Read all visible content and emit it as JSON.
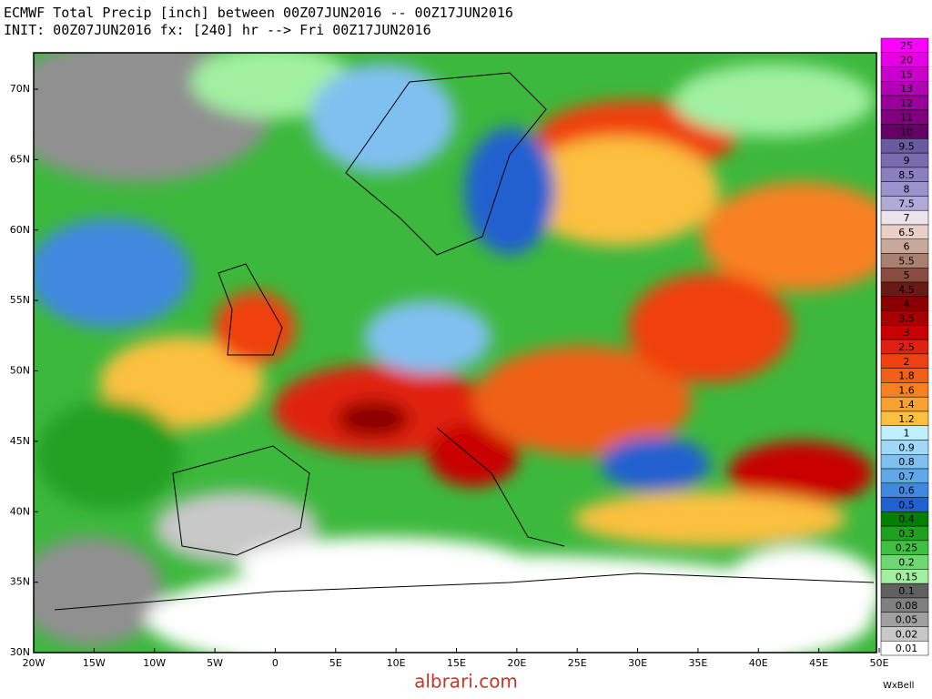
{
  "header": {
    "line1": "ECMWF Total Precip [inch] between 00Z07JUN2016 -- 00Z17JUN2016",
    "line2": "INIT: 00Z07JUN2016 fx: [240] hr --> Fri 00Z17JUN2016"
  },
  "lat_labels": [
    "70N",
    "65N",
    "60N",
    "55N",
    "50N",
    "45N",
    "40N",
    "35N",
    "30N"
  ],
  "lon_labels": [
    "20W",
    "15W",
    "10W",
    "5W",
    "0",
    "5E",
    "10E",
    "15E",
    "20E",
    "25E",
    "30E",
    "35E",
    "40E",
    "45E",
    "50E"
  ],
  "colorbar": [
    {
      "label": "25",
      "color": "#ff00ff"
    },
    {
      "label": "20",
      "color": "#e600e6"
    },
    {
      "label": "15",
      "color": "#cc00cc"
    },
    {
      "label": "13",
      "color": "#b300b3"
    },
    {
      "label": "12",
      "color": "#990099"
    },
    {
      "label": "11",
      "color": "#800080"
    },
    {
      "label": "10",
      "color": "#660066"
    },
    {
      "label": "9.5",
      "color": "#6a5a9e"
    },
    {
      "label": "9",
      "color": "#7a6cb0"
    },
    {
      "label": "8.5",
      "color": "#8a80c0"
    },
    {
      "label": "8",
      "color": "#9a94cc"
    },
    {
      "label": "7.5",
      "color": "#b0aad8"
    },
    {
      "label": "7",
      "color": "#ece4ec"
    },
    {
      "label": "6.5",
      "color": "#e8d0c8"
    },
    {
      "label": "6",
      "color": "#c8a898"
    },
    {
      "label": "5.5",
      "color": "#a88070"
    },
    {
      "label": "5",
      "color": "#884c40"
    },
    {
      "label": "4.5",
      "color": "#6a1a14"
    },
    {
      "label": "4",
      "color": "#8a0000"
    },
    {
      "label": "3.5",
      "color": "#a80000"
    },
    {
      "label": "3",
      "color": "#c80000"
    },
    {
      "label": "2.5",
      "color": "#e02010"
    },
    {
      "label": "2",
      "color": "#f04010"
    },
    {
      "label": "1.8",
      "color": "#f06018"
    },
    {
      "label": "1.6",
      "color": "#f88020"
    },
    {
      "label": "1.4",
      "color": "#f8a030"
    },
    {
      "label": "1.2",
      "color": "#fcc040"
    },
    {
      "label": "1",
      "color": "#c0f0ff"
    },
    {
      "label": "0.9",
      "color": "#a0d8f8"
    },
    {
      "label": "0.8",
      "color": "#80c0f0"
    },
    {
      "label": "0.7",
      "color": "#60a8e8"
    },
    {
      "label": "0.6",
      "color": "#4088e0"
    },
    {
      "label": "0.5",
      "color": "#2060d0"
    },
    {
      "label": "0.4",
      "color": "#008000"
    },
    {
      "label": "0.3",
      "color": "#20a020"
    },
    {
      "label": "0.25",
      "color": "#40c040"
    },
    {
      "label": "0.2",
      "color": "#70d870"
    },
    {
      "label": "0.15",
      "color": "#a0f0a0"
    },
    {
      "label": "0.1",
      "color": "#606060"
    },
    {
      "label": "0.08",
      "color": "#808080"
    },
    {
      "label": "0.05",
      "color": "#a0a0a0"
    },
    {
      "label": "0.02",
      "color": "#c8c8c8"
    },
    {
      "label": "0.01",
      "color": "#ffffff"
    }
  ],
  "watermark": "albrari.com",
  "credit": "WxBell"
}
